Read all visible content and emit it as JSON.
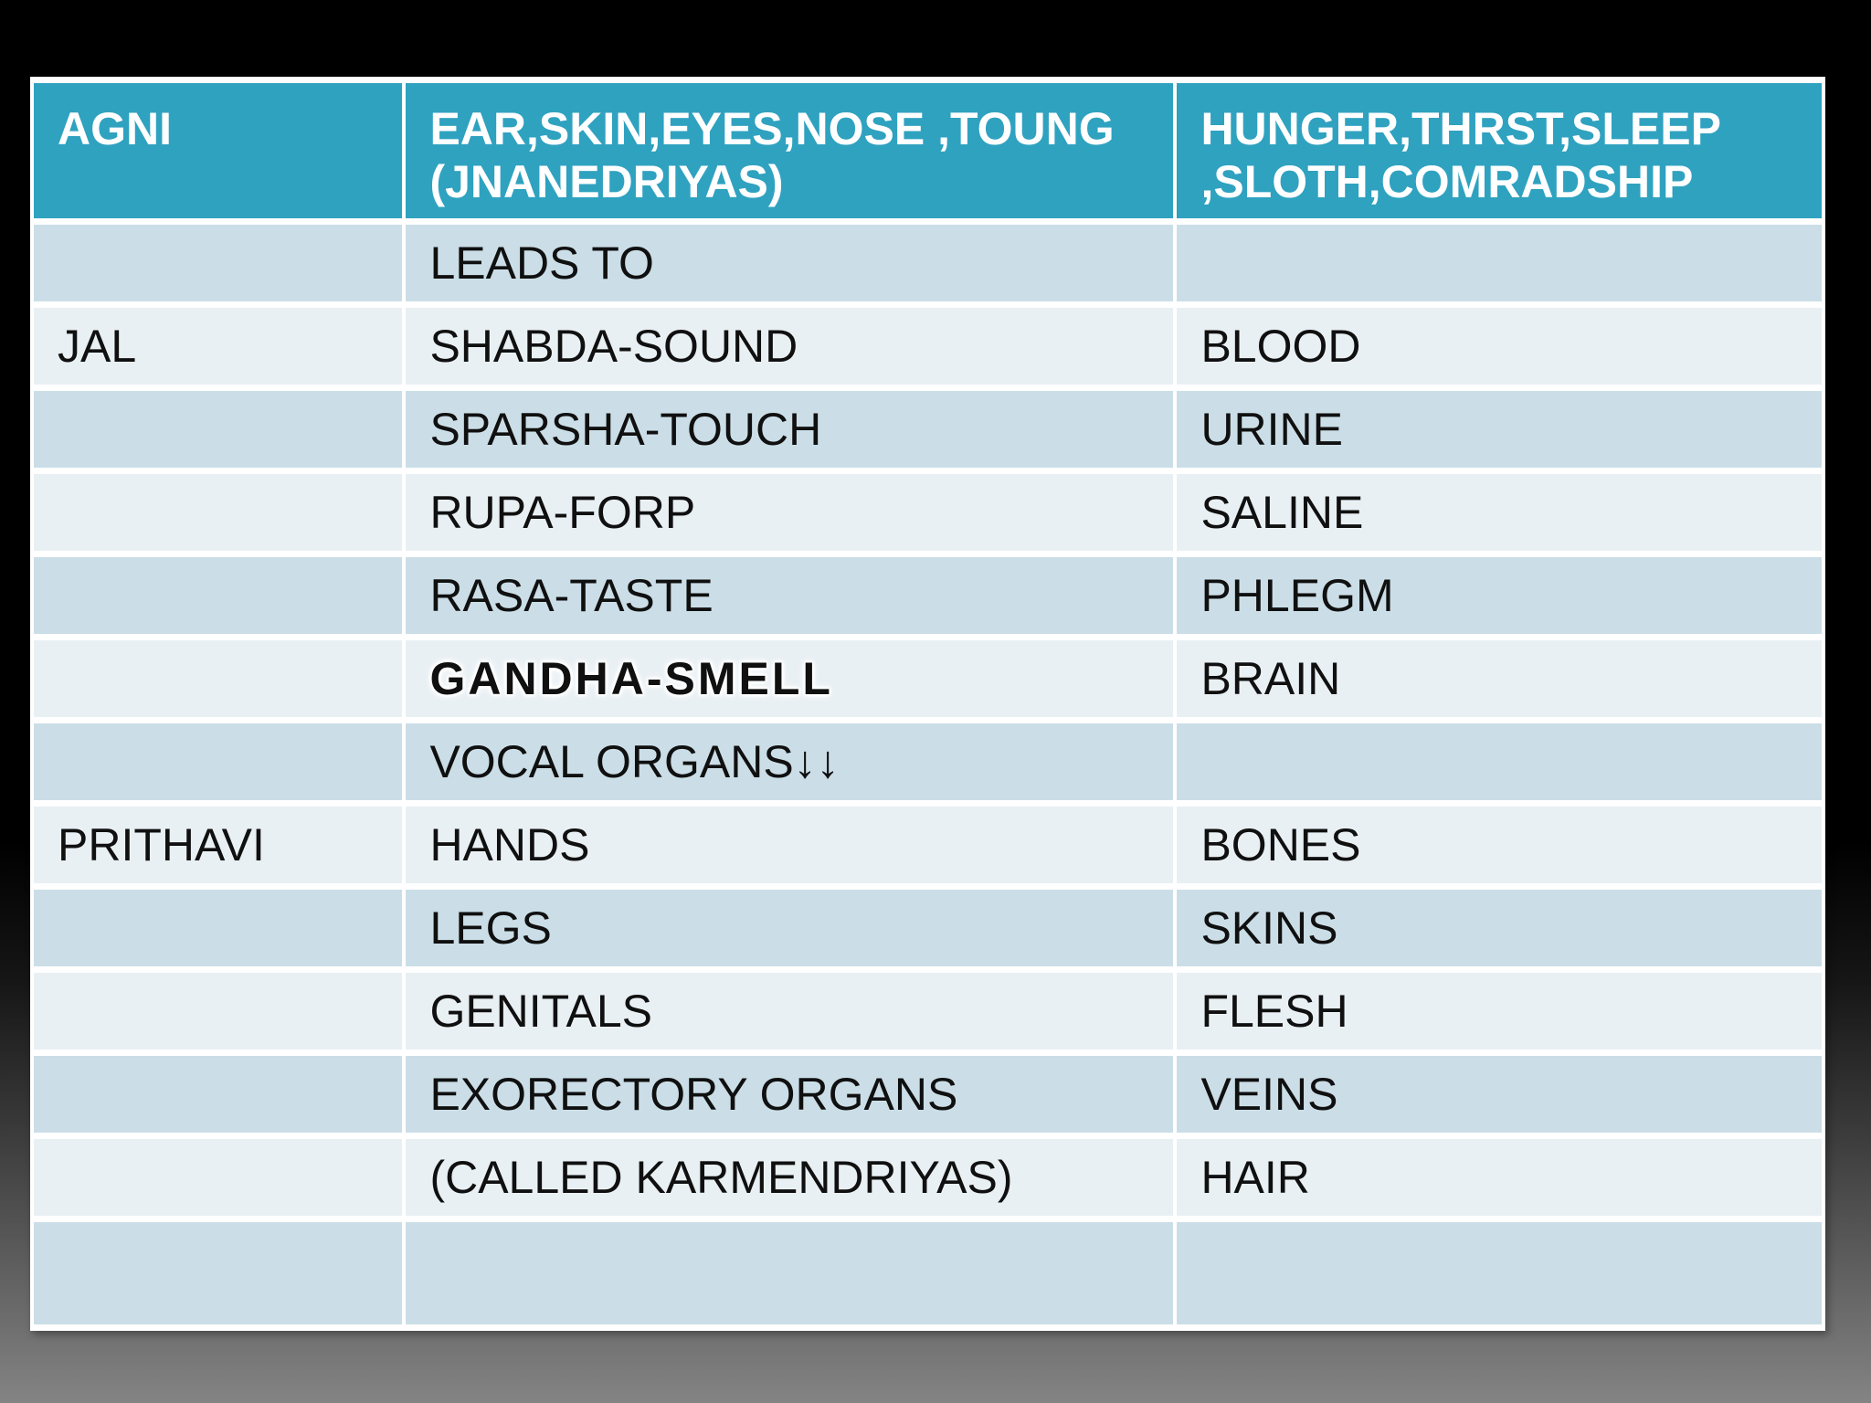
{
  "slide": {
    "background": {
      "top_color": "#000000",
      "bottom_color": "#848484"
    },
    "table": {
      "colors": {
        "header_bg": "#2fa2c0",
        "header_text": "#ffffff",
        "band_dark": "#cbdee7",
        "band_light": "#e9f0f4",
        "body_text": "#101010",
        "grid": "#ffffff"
      },
      "header": {
        "cells": [
          "AGNI",
          "EAR,SKIN,EYES,NOSE ,TOUNG\n(JNANEDRIYAS)",
          "HUNGER,THRST,SLEEP\n,SLOTH,COMRADSHIP"
        ]
      },
      "rows": [
        {
          "band": "dark",
          "cells": [
            "",
            "LEADS TO",
            ""
          ]
        },
        {
          "band": "light",
          "cells": [
            "JAL",
            "SHABDA-SOUND",
            "BLOOD"
          ]
        },
        {
          "band": "dark",
          "cells": [
            "",
            "SPARSHA-TOUCH",
            "URINE"
          ]
        },
        {
          "band": "light",
          "cells": [
            "",
            "RUPA-FORP",
            "SALINE"
          ]
        },
        {
          "band": "dark",
          "cells": [
            "",
            "RASA-TASTE",
            "PHLEGM"
          ]
        },
        {
          "band": "light",
          "cells": [
            "",
            "GANDHA-SMELL",
            "BRAIN"
          ],
          "emphasis_col": 1
        },
        {
          "band": "dark",
          "cells": [
            "",
            "VOCAL ORGANS↓↓",
            ""
          ]
        },
        {
          "band": "light",
          "cells": [
            "PRITHAVI",
            "HANDS",
            "BONES"
          ]
        },
        {
          "band": "dark",
          "cells": [
            "",
            "LEGS",
            "SKINS"
          ]
        },
        {
          "band": "light",
          "cells": [
            "",
            "GENITALS",
            "FLESH"
          ]
        },
        {
          "band": "dark",
          "cells": [
            "",
            "EXORECTORY ORGANS",
            "VEINS"
          ]
        },
        {
          "band": "light",
          "cells": [
            "",
            "(CALLED KARMENDRIYAS)",
            "HAIR"
          ]
        },
        {
          "band": "dark",
          "cells": [
            "",
            "",
            ""
          ]
        }
      ]
    }
  }
}
